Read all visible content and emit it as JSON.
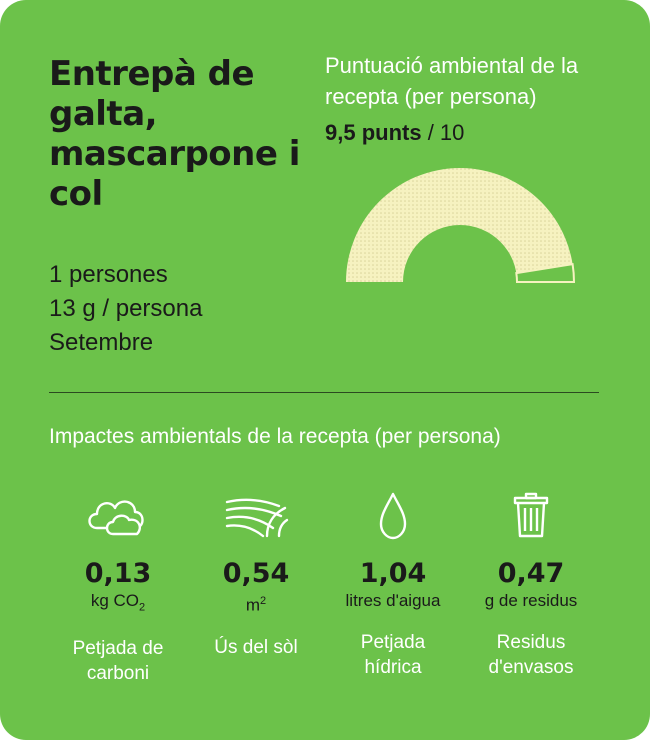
{
  "recipe": {
    "title": "Entrepà de galta, mascarpone i col",
    "persons": "1 persones",
    "weight": "13 g / persona",
    "month": "Setembre"
  },
  "score": {
    "label": "Puntuació ambiental de la recepta (per persona)",
    "value_text": "9,5 punts",
    "max_text": "/ 10",
    "value": 9.5,
    "max": 10
  },
  "impacts": {
    "title": "Impactes ambientals de la recepta (per persona)",
    "items": [
      {
        "icon": "cloud-icon",
        "value": "0,13",
        "unit": "kg CO",
        "unit_sub": "2",
        "name_line1": "Petjada de",
        "name_line2": "carboni"
      },
      {
        "icon": "land-icon",
        "value": "0,54",
        "unit": "m",
        "unit_sup": "2",
        "name_line1": "Ús del sòl",
        "name_line2": ""
      },
      {
        "icon": "water-drop-icon",
        "value": "1,04",
        "unit": "litres d'aigua",
        "name_line1": "Petjada",
        "name_line2": "hídrica"
      },
      {
        "icon": "trash-icon",
        "value": "0,47",
        "unit": "g de residus",
        "name_line1": "Residus",
        "name_line2": "d'envasos"
      }
    ]
  },
  "colors": {
    "background": "#6cc24a",
    "text_dark": "#1a1a1a",
    "text_light": "#ffffff",
    "gauge_fill": "#f6f2c0"
  }
}
